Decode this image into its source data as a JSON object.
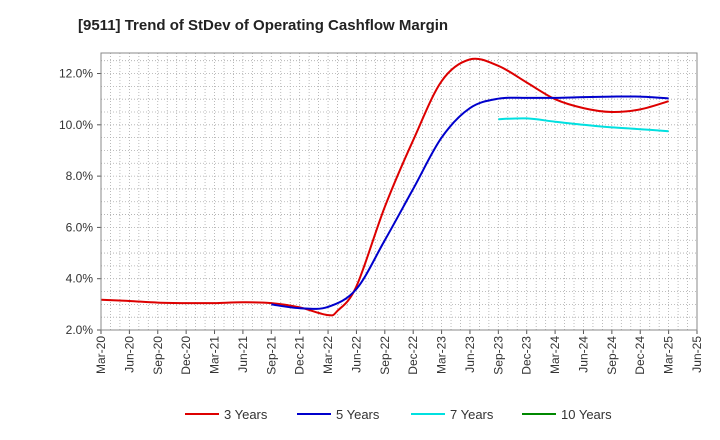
{
  "chart_data": {
    "type": "line",
    "title": "[9511]  Trend of StDev of Operating Cashflow Margin",
    "xlabel": "",
    "ylabel": "",
    "x_ticks": [
      "Mar-20",
      "Jun-20",
      "Sep-20",
      "Dec-20",
      "Mar-21",
      "Jun-21",
      "Sep-21",
      "Dec-21",
      "Mar-22",
      "Jun-22",
      "Sep-22",
      "Dec-22",
      "Mar-23",
      "Jun-23",
      "Sep-23",
      "Dec-23",
      "Mar-24",
      "Jun-24",
      "Sep-24",
      "Dec-24",
      "Mar-25",
      "Jun-25"
    ],
    "y_ticks": [
      "2.0%",
      "4.0%",
      "6.0%",
      "8.0%",
      "10.0%",
      "12.0%"
    ],
    "ylim": [
      2.0,
      12.8
    ],
    "grid": true,
    "legend_position": "bottom",
    "series": [
      {
        "name": "3 Years",
        "color": "#dd0000",
        "points": [
          [
            "Mar-20",
            3.18
          ],
          [
            "Jun-20",
            3.13
          ],
          [
            "Sep-20",
            3.07
          ],
          [
            "Dec-20",
            3.05
          ],
          [
            "Mar-21",
            3.05
          ],
          [
            "Jun-21",
            3.08
          ],
          [
            "Sep-21",
            3.05
          ],
          [
            "Dec-21",
            2.88
          ],
          [
            "Mar-22",
            2.58
          ],
          [
            "Apr-22",
            2.75
          ],
          [
            "Jun-22",
            3.7
          ],
          [
            "Sep-22",
            6.8
          ],
          [
            "Dec-22",
            9.4
          ],
          [
            "Mar-23",
            11.7
          ],
          [
            "Jun-23",
            12.55
          ],
          [
            "Sep-23",
            12.3
          ],
          [
            "Dec-23",
            11.65
          ],
          [
            "Mar-24",
            11.0
          ],
          [
            "Jun-24",
            10.65
          ],
          [
            "Sep-24",
            10.5
          ],
          [
            "Dec-24",
            10.6
          ],
          [
            "Mar-25",
            10.92
          ]
        ]
      },
      {
        "name": "5 Years",
        "color": "#0000cc",
        "points": [
          [
            "Sep-21",
            3.0
          ],
          [
            "Dec-21",
            2.85
          ],
          [
            "Mar-22",
            2.9
          ],
          [
            "Jun-22",
            3.6
          ],
          [
            "Sep-22",
            5.5
          ],
          [
            "Dec-22",
            7.5
          ],
          [
            "Mar-23",
            9.5
          ],
          [
            "Jun-23",
            10.65
          ],
          [
            "Sep-23",
            11.02
          ],
          [
            "Dec-23",
            11.05
          ],
          [
            "Mar-24",
            11.05
          ],
          [
            "Jun-24",
            11.08
          ],
          [
            "Sep-24",
            11.1
          ],
          [
            "Dec-24",
            11.1
          ],
          [
            "Mar-25",
            11.03
          ]
        ]
      },
      {
        "name": "7 Years",
        "color": "#00e0e0",
        "points": [
          [
            "Sep-23",
            10.22
          ],
          [
            "Dec-23",
            10.25
          ],
          [
            "Mar-24",
            10.12
          ],
          [
            "Jun-24",
            10.0
          ],
          [
            "Sep-24",
            9.9
          ],
          [
            "Dec-24",
            9.83
          ],
          [
            "Mar-25",
            9.75
          ]
        ]
      },
      {
        "name": "10 Years",
        "color": "#008800",
        "points": []
      }
    ]
  }
}
